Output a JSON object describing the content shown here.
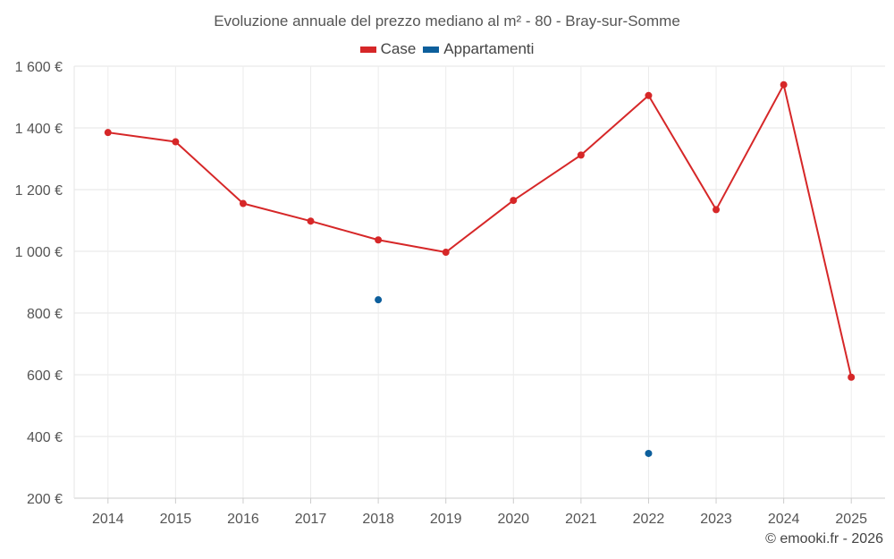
{
  "chart_data": {
    "type": "line",
    "title": "Evoluzione annuale del prezzo mediano al m² - 80 - Bray-sur-Somme",
    "categories": [
      "2014",
      "2015",
      "2016",
      "2017",
      "2018",
      "2019",
      "2020",
      "2021",
      "2022",
      "2023",
      "2024",
      "2025"
    ],
    "series": [
      {
        "name": "Case",
        "color": "#d62728",
        "values": [
          1385,
          1355,
          1155,
          1098,
          1037,
          997,
          1165,
          1312,
          1505,
          1135,
          1540,
          592
        ]
      },
      {
        "name": "Appartamenti",
        "color": "#0d5f9c",
        "values": [
          null,
          null,
          null,
          null,
          843,
          null,
          null,
          null,
          345,
          null,
          null,
          null
        ]
      }
    ],
    "ylim": [
      200,
      1600
    ],
    "yticks": [
      200,
      400,
      600,
      800,
      1000,
      1200,
      1400,
      1600
    ],
    "ytick_labels": [
      "200 €",
      "400 €",
      "600 €",
      "800 €",
      "1 000 €",
      "1 200 €",
      "1 400 €",
      "1 600 €"
    ],
    "xlabel": "",
    "ylabel": "",
    "grid": true,
    "legend_position": "top-center"
  },
  "footer": {
    "copyright": "© emooki.fr - 2026"
  }
}
